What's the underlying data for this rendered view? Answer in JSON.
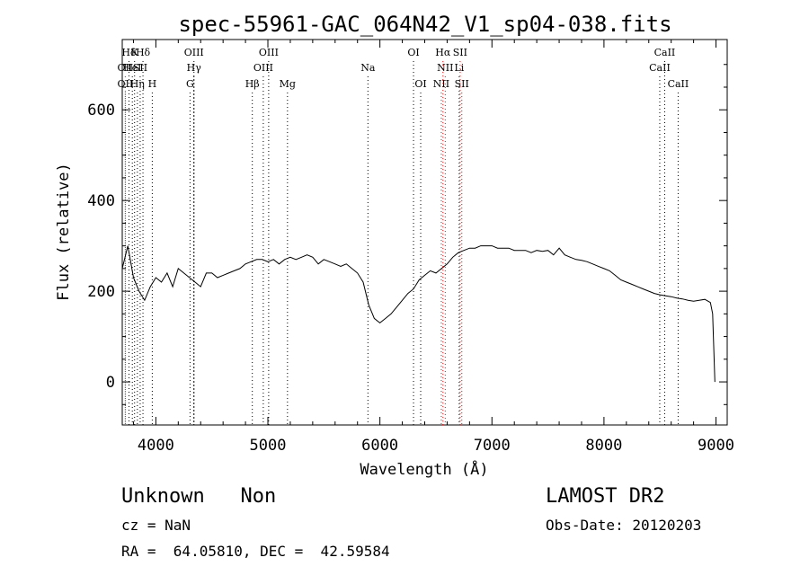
{
  "chart_data": {
    "type": "line",
    "title": "spec-55961-GAC_064N42_V1_sp04-038.fits",
    "xlabel": "Wavelength (Å)",
    "ylabel": "Flux (relative)",
    "xlim": [
      3700,
      9100
    ],
    "ylim": [
      -95,
      755
    ],
    "xticks": [
      4000,
      5000,
      6000,
      7000,
      8000,
      9000
    ],
    "yticks": [
      0,
      200,
      400,
      600
    ],
    "grid": false,
    "line_color": "#000000",
    "series": [
      {
        "name": "",
        "x": [
          3700,
          3750,
          3800,
          3850,
          3900,
          3950,
          4000,
          4050,
          4100,
          4150,
          4200,
          4250,
          4300,
          4350,
          4400,
          4450,
          4500,
          4550,
          4600,
          4650,
          4700,
          4750,
          4800,
          4850,
          4900,
          4950,
          5000,
          5050,
          5100,
          5150,
          5200,
          5250,
          5300,
          5350,
          5400,
          5450,
          5500,
          5550,
          5600,
          5650,
          5700,
          5750,
          5800,
          5850,
          5900,
          5950,
          6000,
          6050,
          6100,
          6150,
          6200,
          6250,
          6300,
          6350,
          6400,
          6450,
          6500,
          6550,
          6600,
          6650,
          6700,
          6750,
          6800,
          6850,
          6900,
          6950,
          7000,
          7050,
          7100,
          7150,
          7200,
          7250,
          7300,
          7350,
          7400,
          7450,
          7500,
          7550,
          7600,
          7650,
          7700,
          7750,
          7800,
          7850,
          7900,
          7950,
          8000,
          8050,
          8100,
          8150,
          8200,
          8250,
          8300,
          8350,
          8400,
          8450,
          8500,
          8550,
          8600,
          8650,
          8700,
          8750,
          8800,
          8850,
          8900,
          8950,
          8970,
          8990
        ],
        "values": [
          250,
          300,
          230,
          200,
          180,
          210,
          230,
          220,
          240,
          210,
          250,
          240,
          230,
          220,
          210,
          240,
          240,
          230,
          235,
          240,
          245,
          250,
          260,
          265,
          270,
          270,
          265,
          270,
          260,
          270,
          275,
          270,
          275,
          280,
          275,
          260,
          270,
          265,
          260,
          255,
          260,
          250,
          240,
          220,
          170,
          140,
          130,
          140,
          150,
          165,
          180,
          195,
          205,
          225,
          235,
          245,
          240,
          250,
          260,
          275,
          285,
          290,
          295,
          295,
          300,
          300,
          300,
          295,
          295,
          295,
          290,
          290,
          290,
          285,
          290,
          288,
          290,
          280,
          295,
          280,
          275,
          270,
          268,
          265,
          260,
          255,
          250,
          245,
          235,
          225,
          220,
          215,
          210,
          205,
          200,
          195,
          192,
          190,
          188,
          185,
          183,
          180,
          178,
          180,
          182,
          175,
          150,
          0
        ]
      }
    ],
    "line_marks": [
      {
        "label": "Hδ",
        "wavelength": 3760,
        "row": 1,
        "color": "#000000"
      },
      {
        "label": "K",
        "wavelength": 3810,
        "row": 1,
        "color": "#000000"
      },
      {
        "label": "Hδ",
        "wavelength": 3885,
        "row": 1,
        "color": "#000000"
      },
      {
        "label": "OII",
        "wavelength": 3727,
        "row": 2,
        "color": "#ff0000"
      },
      {
        "label": "HeI",
        "wavelength": 3790,
        "row": 2,
        "color": "#000000"
      },
      {
        "label": "SII",
        "wavelength": 3860,
        "row": 2,
        "color": "#000000"
      },
      {
        "label": "OIII",
        "wavelength": 4340,
        "row": 1,
        "color": "#000000"
      },
      {
        "label": "Hγ",
        "wavelength": 4340,
        "row": 2,
        "color": "#000000"
      },
      {
        "label": "G",
        "wavelength": 4305,
        "row": 3,
        "color": "#000000"
      },
      {
        "label": "OII",
        "wavelength": 3727,
        "row": 3,
        "color": "#ff0000"
      },
      {
        "label": "Hη",
        "wavelength": 3835,
        "row": 3,
        "color": "#000000"
      },
      {
        "label": "H",
        "wavelength": 3968,
        "row": 3,
        "color": "#000000"
      },
      {
        "label": "OIII",
        "wavelength": 5007,
        "row": 1,
        "color": "#000000"
      },
      {
        "label": "OIII",
        "wavelength": 4959,
        "row": 2,
        "color": "#000000"
      },
      {
        "label": "Hβ",
        "wavelength": 4861,
        "row": 3,
        "color": "#000000"
      },
      {
        "label": "Mg",
        "wavelength": 5175,
        "row": 3,
        "color": "#000000"
      },
      {
        "label": "Na",
        "wavelength": 5893,
        "row": 2,
        "color": "#000000"
      },
      {
        "label": "OI",
        "wavelength": 6300,
        "row": 1,
        "color": "#000000"
      },
      {
        "label": "OI",
        "wavelength": 6364,
        "row": 3,
        "color": "#000000"
      },
      {
        "label": "Hα",
        "wavelength": 6563,
        "row": 1,
        "color": "#ff0000"
      },
      {
        "label": "SII",
        "wavelength": 6716,
        "row": 1,
        "color": "#ff0000"
      },
      {
        "label": "NII",
        "wavelength": 6583,
        "row": 2,
        "color": "#ff0000"
      },
      {
        "label": "Li",
        "wavelength": 6708,
        "row": 2,
        "color": "#000000"
      },
      {
        "label": "NII",
        "wavelength": 6548,
        "row": 3,
        "color": "#ff0000"
      },
      {
        "label": "SII",
        "wavelength": 6731,
        "row": 3,
        "color": "#ff0000"
      },
      {
        "label": "CaII",
        "wavelength": 8542,
        "row": 1,
        "color": "#000000"
      },
      {
        "label": "CaII",
        "wavelength": 8498,
        "row": 2,
        "color": "#000000"
      },
      {
        "label": "CaII",
        "wavelength": 8662,
        "row": 3,
        "color": "#000000"
      }
    ]
  },
  "info": {
    "class_text": "Unknown   Non",
    "survey": "LAMOST DR2",
    "cz_text": "cz = NaN",
    "obs_date": "Obs-Date: 20120203",
    "radec_text": "RA =  64.05810, DEC =  42.59584"
  }
}
